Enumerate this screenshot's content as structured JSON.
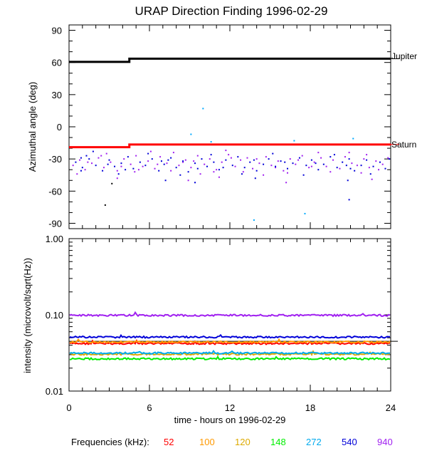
{
  "chart_data": [
    {
      "type": "scatter",
      "title": "URAP Direction Finding  1996-02-29",
      "xlabel": "",
      "ylabel": "Azimuthal angle (deg)",
      "xlim": [
        0,
        24
      ],
      "ylim": [
        -95,
        95
      ],
      "y_ticks": [
        90,
        60,
        30,
        0,
        -30,
        -60,
        -90
      ],
      "y_tick_labels": [
        "90",
        "60",
        "30",
        "0",
        "-30",
        "-60",
        "-90"
      ],
      "reference_lines": [
        {
          "label": "Jupiter",
          "color": "#000000",
          "x": [
            0,
            4.5,
            4.5,
            24
          ],
          "y": [
            60.5,
            60.5,
            63.5,
            63.5
          ]
        },
        {
          "label": "Saturn",
          "color": "#ff0000",
          "x": [
            0,
            4.5,
            4.5,
            24
          ],
          "y": [
            -19,
            -19,
            -16.5,
            -16.5
          ]
        }
      ],
      "series": [
        {
          "color": "#a020f0",
          "points": [
            [
              0.3,
              -36
            ],
            [
              0.8,
              -31
            ],
            [
              1.2,
              -40
            ],
            [
              1.7,
              -34
            ],
            [
              2.2,
              -29
            ],
            [
              2.6,
              -38
            ],
            [
              3.1,
              -33
            ],
            [
              3.6,
              -41
            ],
            [
              4.1,
              -30
            ],
            [
              4.6,
              -35
            ],
            [
              5.0,
              -27
            ],
            [
              5.5,
              -37
            ],
            [
              5.9,
              -32
            ],
            [
              6.4,
              -39
            ],
            [
              6.8,
              -28
            ],
            [
              7.3,
              -34
            ],
            [
              7.8,
              -24
            ],
            [
              8.2,
              -36
            ],
            [
              8.7,
              -31
            ],
            [
              9.1,
              -38
            ],
            [
              9.6,
              -27
            ],
            [
              10.1,
              -35
            ],
            [
              10.5,
              -30
            ],
            [
              11.0,
              -40
            ],
            [
              11.4,
              -33
            ],
            [
              11.9,
              -26
            ],
            [
              12.4,
              -37
            ],
            [
              12.8,
              -31
            ],
            [
              13.3,
              -29
            ],
            [
              13.7,
              -39
            ],
            [
              14.2,
              -34
            ],
            [
              14.7,
              -28
            ],
            [
              15.1,
              -36
            ],
            [
              15.6,
              -32
            ],
            [
              16.0,
              -41
            ],
            [
              16.5,
              -30
            ],
            [
              16.9,
              -35
            ],
            [
              17.4,
              -27
            ],
            [
              17.9,
              -38
            ],
            [
              18.3,
              -33
            ],
            [
              18.8,
              -29
            ],
            [
              19.2,
              -37
            ],
            [
              19.7,
              -31
            ],
            [
              20.2,
              -39
            ],
            [
              20.6,
              -28
            ],
            [
              21.1,
              -34
            ],
            [
              21.5,
              -36
            ],
            [
              22.0,
              -30
            ],
            [
              22.4,
              -38
            ],
            [
              22.9,
              -32
            ],
            [
              23.4,
              -35
            ],
            [
              23.8,
              -29
            ],
            [
              2.8,
              -25
            ],
            [
              6.1,
              -23
            ],
            [
              9.8,
              -44
            ],
            [
              14.5,
              -45
            ],
            [
              18.6,
              -24
            ],
            [
              21.8,
              -43
            ],
            [
              0.6,
              -44
            ],
            [
              4.9,
              -42
            ],
            [
              11.7,
              -22
            ],
            [
              16.3,
              -43
            ],
            [
              20.9,
              -24
            ],
            [
              7.6,
              -41
            ],
            [
              13.0,
              -42
            ],
            [
              2.4,
              -27
            ],
            [
              5.2,
              -40
            ],
            [
              8.5,
              -33
            ],
            [
              10.8,
              -42
            ],
            [
              12.1,
              -29
            ],
            [
              15.4,
              -38
            ],
            [
              17.1,
              -31
            ],
            [
              19.5,
              -42
            ],
            [
              22.2,
              -26
            ],
            [
              23.1,
              -40
            ],
            [
              1.4,
              -33
            ],
            [
              3.9,
              -37
            ],
            [
              6.6,
              -35
            ],
            [
              9.3,
              -32
            ],
            [
              14.0,
              -30
            ],
            [
              18.1,
              -37
            ]
          ]
        },
        {
          "color": "#0000d8",
          "points": [
            [
              0.5,
              -33
            ],
            [
              1.0,
              -38
            ],
            [
              1.5,
              -30
            ],
            [
              2.0,
              -36
            ],
            [
              2.5,
              -41
            ],
            [
              3.0,
              -31
            ],
            [
              3.4,
              -37
            ],
            [
              3.9,
              -34
            ],
            [
              4.4,
              -28
            ],
            [
              4.8,
              -39
            ],
            [
              5.3,
              -33
            ],
            [
              5.7,
              -36
            ],
            [
              6.2,
              -30
            ],
            [
              6.7,
              -41
            ],
            [
              7.1,
              -35
            ],
            [
              7.6,
              -29
            ],
            [
              8.0,
              -38
            ],
            [
              8.5,
              -32
            ],
            [
              8.9,
              -42
            ],
            [
              9.4,
              -34
            ],
            [
              9.9,
              -30
            ],
            [
              10.3,
              -37
            ],
            [
              10.8,
              -33
            ],
            [
              11.2,
              -40
            ],
            [
              11.7,
              -31
            ],
            [
              12.2,
              -36
            ],
            [
              12.6,
              -28
            ],
            [
              13.1,
              -38
            ],
            [
              13.5,
              -33
            ],
            [
              14.0,
              -41
            ],
            [
              14.5,
              -35
            ],
            [
              14.9,
              -30
            ],
            [
              15.4,
              -37
            ],
            [
              15.8,
              -32
            ],
            [
              16.3,
              -39
            ],
            [
              16.7,
              -34
            ],
            [
              17.2,
              -29
            ],
            [
              17.7,
              -36
            ],
            [
              18.1,
              -31
            ],
            [
              18.6,
              -40
            ],
            [
              19.0,
              -35
            ],
            [
              19.5,
              -28
            ],
            [
              20.0,
              -38
            ],
            [
              20.4,
              -33
            ],
            [
              20.9,
              -30
            ],
            [
              21.3,
              -41
            ],
            [
              21.8,
              -36
            ],
            [
              22.2,
              -31
            ],
            [
              22.7,
              -37
            ],
            [
              23.2,
              -33
            ],
            [
              23.6,
              -39
            ],
            [
              1.3,
              -27
            ],
            [
              3.7,
              -44
            ],
            [
              5.9,
              -25
            ],
            [
              8.3,
              -45
            ],
            [
              10.6,
              -26
            ],
            [
              12.9,
              -44
            ],
            [
              15.2,
              -25
            ],
            [
              17.5,
              -45
            ],
            [
              19.8,
              -26
            ],
            [
              22.5,
              -44
            ],
            [
              2.9,
              -35
            ],
            [
              7.4,
              -31
            ],
            [
              11.5,
              -38
            ],
            [
              16.1,
              -33
            ],
            [
              20.7,
              -36
            ],
            [
              0.9,
              -29
            ],
            [
              4.2,
              -40
            ],
            [
              6.9,
              -32
            ],
            [
              9.6,
              -39
            ],
            [
              13.8,
              -31
            ],
            [
              18.4,
              -34
            ],
            [
              21.0,
              -39
            ],
            [
              23.9,
              -30
            ]
          ]
        },
        {
          "color": "#0000d8",
          "points": [
            [
              7.2,
              -50
            ],
            [
              9.4,
              -52
            ],
            [
              13.9,
              -48
            ],
            [
              20.8,
              -50
            ],
            [
              1.8,
              -23
            ],
            [
              0.9,
              -41
            ]
          ]
        },
        {
          "color": "#a020f0",
          "points": [
            [
              3.6,
              -48
            ],
            [
              8.9,
              -50
            ],
            [
              16.2,
              -52
            ],
            [
              22.6,
              -49
            ],
            [
              11.2,
              -47
            ]
          ]
        },
        {
          "color": "#000000",
          "points": [
            [
              2.7,
              -73
            ],
            [
              3.2,
              -53
            ]
          ]
        },
        {
          "color": "#0000d8",
          "points": [
            [
              20.9,
              -68
            ]
          ]
        },
        {
          "color": "#00aaff",
          "points": [
            [
              10.0,
              17
            ],
            [
              9.1,
              -7
            ],
            [
              10.6,
              -14
            ],
            [
              13.8,
              -87
            ],
            [
              17.6,
              -81
            ],
            [
              21.2,
              -11
            ],
            [
              16.8,
              -13
            ]
          ]
        }
      ]
    },
    {
      "type": "line",
      "xlabel": "time - hours on 1996-02-29",
      "ylabel": "intensity (microvolt/sqrt(Hz))",
      "xlim": [
        0,
        24
      ],
      "ylim": [
        0.01,
        1.0
      ],
      "y_scale": "log",
      "x_ticks": [
        0,
        6,
        12,
        18,
        24
      ],
      "x_tick_labels": [
        "0",
        "6",
        "12",
        "18",
        "24"
      ],
      "y_ticks": [
        1.0,
        0.1,
        0.01
      ],
      "y_tick_labels": [
        "1.00",
        "0.10",
        "0.01"
      ],
      "reference_line": {
        "y": 0.045,
        "color": "#000000"
      },
      "series": [
        {
          "name": "52",
          "color": "#ff0000",
          "level": 0.042
        },
        {
          "name": "100",
          "color": "#ff9900",
          "level": 0.044
        },
        {
          "name": "120",
          "color": "#ddaa00",
          "level": 0.0305
        },
        {
          "name": "148",
          "color": "#00ee00",
          "level": 0.0265
        },
        {
          "name": "272",
          "color": "#00aaee",
          "level": 0.0315
        },
        {
          "name": "540",
          "color": "#0000d8",
          "level": 0.051
        },
        {
          "name": "940",
          "color": "#a020f0",
          "level": 0.0985
        }
      ]
    }
  ],
  "right_labels": {
    "jupiter": "Jupiter",
    "saturn": "Saturn"
  },
  "legend": {
    "prefix": "Frequencies (kHz):"
  }
}
